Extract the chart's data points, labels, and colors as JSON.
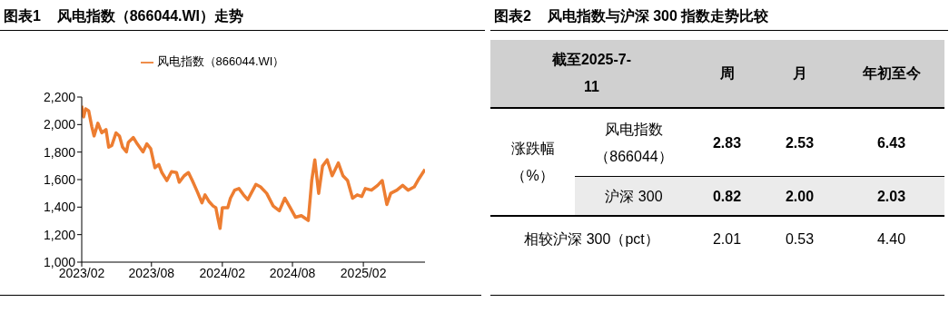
{
  "chart_data": [
    {
      "type": "line",
      "title": "图表1    风电指数（866044.WI）走势",
      "legend": "top",
      "marker": "none",
      "x": [
        "2023-02-01",
        "2023-02-03",
        "2023-02-06",
        "2023-02-11",
        "2023-02-19",
        "2023-02-27",
        "2023-03-05",
        "2023-03-15",
        "2023-03-25",
        "2023-04-05",
        "2023-04-12",
        "2023-04-20",
        "2023-05-01",
        "2023-05-10",
        "2023-05-18",
        "2023-05-28",
        "2023-06-02",
        "2023-06-15",
        "2023-06-25",
        "2023-07-10",
        "2023-07-20",
        "2023-07-30",
        "2023-08-10",
        "2023-08-20",
        "2023-08-28",
        "2023-09-10",
        "2023-09-22",
        "2023-10-05",
        "2023-10-12",
        "2023-10-25",
        "2023-11-05",
        "2023-11-15",
        "2023-11-28",
        "2023-12-10",
        "2023-12-18",
        "2023-12-28",
        "2024-01-08",
        "2024-01-15",
        "2024-01-20",
        "2024-01-26",
        "2024-02-01",
        "2024-02-15",
        "2024-02-22",
        "2024-03-04",
        "2024-03-15",
        "2024-03-27",
        "2024-04-07",
        "2024-04-28",
        "2024-05-10",
        "2024-05-26",
        "2024-06-12",
        "2024-06-28",
        "2024-07-12",
        "2024-07-26",
        "2024-08-09",
        "2024-08-24",
        "2024-09-11",
        "2024-09-20",
        "2024-09-28",
        "2024-10-08",
        "2024-10-18",
        "2024-10-30",
        "2024-11-12",
        "2024-11-28",
        "2024-12-10",
        "2024-12-22",
        "2025-01-04",
        "2025-01-16",
        "2025-01-28",
        "2025-02-06",
        "2025-02-22",
        "2025-03-10",
        "2025-03-22",
        "2025-04-03",
        "2025-04-13",
        "2025-04-29",
        "2025-05-14",
        "2025-05-28",
        "2025-06-13",
        "2025-06-25",
        "2025-07-11"
      ],
      "series": [
        {
          "name": "风电指数（866044.WI）",
          "color": "#ed7d31",
          "values": [
            2137,
            2068,
            2056,
            2114,
            2100,
            1987,
            1917,
            2010,
            1940,
            1964,
            1836,
            1848,
            1940,
            1917,
            1836,
            1801,
            1871,
            1906,
            1860,
            1801,
            1860,
            1825,
            1686,
            1709,
            1651,
            1593,
            1658,
            1651,
            1581,
            1628,
            1651,
            1593,
            1512,
            1431,
            1489,
            1442,
            1408,
            1396,
            1326,
            1245,
            1396,
            1396,
            1465,
            1523,
            1535,
            1489,
            1454,
            1565,
            1547,
            1500,
            1408,
            1373,
            1465,
            1396,
            1326,
            1338,
            1303,
            1593,
            1744,
            1500,
            1698,
            1744,
            1628,
            1721,
            1628,
            1593,
            1465,
            1489,
            1477,
            1535,
            1523,
            1558,
            1593,
            1419,
            1500,
            1523,
            1558,
            1523,
            1547,
            1605,
            1674
          ]
        }
      ],
      "xlim": [
        "2023-02-01",
        "2025-07-11"
      ],
      "xticks": [
        {
          "value": "2023-02",
          "label": "2023/02"
        },
        {
          "value": "2023-08",
          "label": "2023/08"
        },
        {
          "value": "2024-02",
          "label": "2024/02"
        },
        {
          "value": "2024-08",
          "label": "2024/08"
        },
        {
          "value": "2025-02",
          "label": "2025/02"
        }
      ],
      "ylim": [
        1000,
        2200
      ],
      "yticks": [
        {
          "value": 1000,
          "label": "1,000"
        },
        {
          "value": 1200,
          "label": "1,200"
        },
        {
          "value": 1400,
          "label": "1,400"
        },
        {
          "value": 1600,
          "label": "1,600"
        },
        {
          "value": 1800,
          "label": "1,800"
        },
        {
          "value": 2000,
          "label": "2,000"
        },
        {
          "value": 2200,
          "label": "2,200"
        }
      ]
    },
    {
      "type": "other",
      "title": "图表2    风电指数与沪深 300 指数走势比较",
      "annotations": [
        "截至2025-7-11",
        "涨跌幅（%）"
      ],
      "categories": [
        "周",
        "月",
        "年初至今"
      ],
      "y_categories": [
        "风电指数（866044）",
        "沪深 300",
        "相较沪深 300（pct）"
      ],
      "cell_labels": [
        [
          "2.83",
          "2.53",
          "6.43"
        ],
        [
          "0.82",
          "2.00",
          "2.03"
        ],
        [
          "2.01",
          "0.53",
          "4.40"
        ]
      ]
    }
  ]
}
